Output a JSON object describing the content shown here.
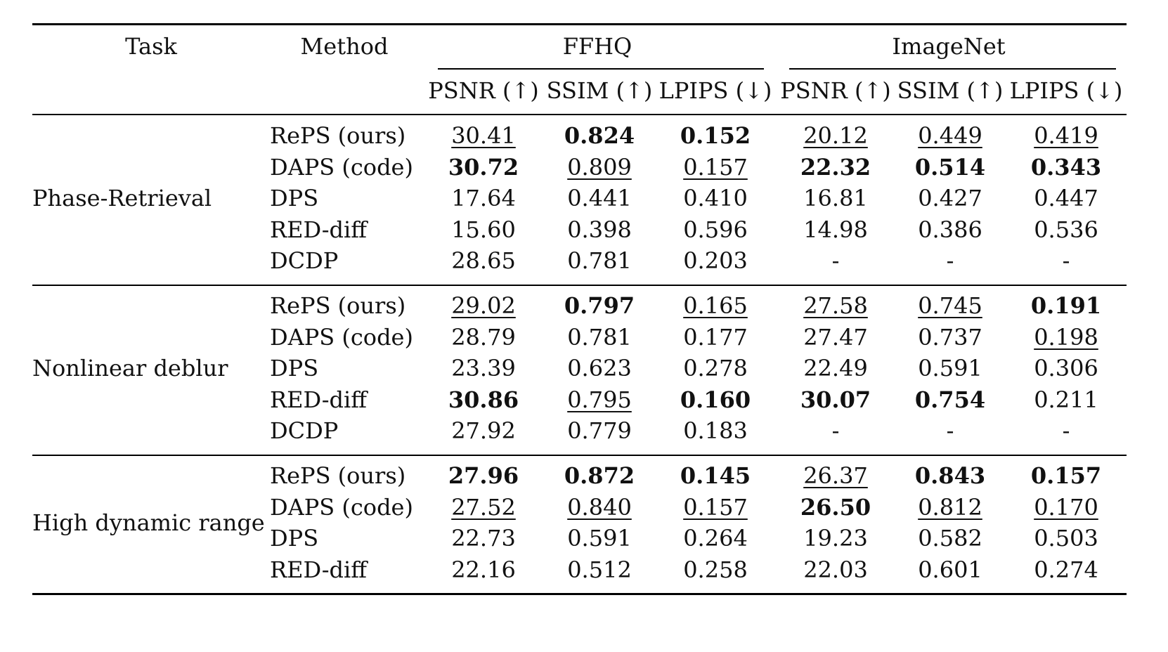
{
  "headers": {
    "task": "Task",
    "method": "Method",
    "groups": [
      "FFHQ",
      "ImageNet"
    ],
    "metrics": [
      "PSNR (↑)",
      "SSIM (↑)",
      "LPIPS (↓)",
      "PSNR (↑)",
      "SSIM (↑)",
      "LPIPS (↓)"
    ]
  },
  "groups": [
    {
      "task": "Phase-Retrieval",
      "rows": [
        {
          "method": "RePS (ours)",
          "cells": [
            {
              "v": "30.41",
              "s": "u"
            },
            {
              "v": "0.824",
              "s": "b"
            },
            {
              "v": "0.152",
              "s": "b"
            },
            {
              "v": "20.12",
              "s": "u"
            },
            {
              "v": "0.449",
              "s": "u"
            },
            {
              "v": "0.419",
              "s": "u"
            }
          ]
        },
        {
          "method": "DAPS (code)",
          "cells": [
            {
              "v": "30.72",
              "s": "b"
            },
            {
              "v": "0.809",
              "s": "u"
            },
            {
              "v": "0.157",
              "s": "u"
            },
            {
              "v": "22.32",
              "s": "b"
            },
            {
              "v": "0.514",
              "s": "b"
            },
            {
              "v": "0.343",
              "s": "b"
            }
          ]
        },
        {
          "method": "DPS",
          "cells": [
            {
              "v": "17.64",
              "s": ""
            },
            {
              "v": "0.441",
              "s": ""
            },
            {
              "v": "0.410",
              "s": ""
            },
            {
              "v": "16.81",
              "s": ""
            },
            {
              "v": "0.427",
              "s": ""
            },
            {
              "v": "0.447",
              "s": ""
            }
          ]
        },
        {
          "method": "RED-diff",
          "cells": [
            {
              "v": "15.60",
              "s": ""
            },
            {
              "v": "0.398",
              "s": ""
            },
            {
              "v": "0.596",
              "s": ""
            },
            {
              "v": "14.98",
              "s": ""
            },
            {
              "v": "0.386",
              "s": ""
            },
            {
              "v": "0.536",
              "s": ""
            }
          ]
        },
        {
          "method": "DCDP",
          "cells": [
            {
              "v": "28.65",
              "s": ""
            },
            {
              "v": "0.781",
              "s": ""
            },
            {
              "v": "0.203",
              "s": ""
            },
            {
              "v": "-",
              "s": ""
            },
            {
              "v": "-",
              "s": ""
            },
            {
              "v": "-",
              "s": ""
            }
          ]
        }
      ]
    },
    {
      "task": "Nonlinear deblur",
      "rows": [
        {
          "method": "RePS (ours)",
          "cells": [
            {
              "v": "29.02",
              "s": "u"
            },
            {
              "v": "0.797",
              "s": "b"
            },
            {
              "v": "0.165",
              "s": "u"
            },
            {
              "v": "27.58",
              "s": "u"
            },
            {
              "v": "0.745",
              "s": "u"
            },
            {
              "v": "0.191",
              "s": "b"
            }
          ]
        },
        {
          "method": "DAPS (code)",
          "cells": [
            {
              "v": "28.79",
              "s": ""
            },
            {
              "v": "0.781",
              "s": ""
            },
            {
              "v": "0.177",
              "s": ""
            },
            {
              "v": "27.47",
              "s": ""
            },
            {
              "v": "0.737",
              "s": ""
            },
            {
              "v": "0.198",
              "s": "u"
            }
          ]
        },
        {
          "method": "DPS",
          "cells": [
            {
              "v": "23.39",
              "s": ""
            },
            {
              "v": "0.623",
              "s": ""
            },
            {
              "v": "0.278",
              "s": ""
            },
            {
              "v": "22.49",
              "s": ""
            },
            {
              "v": "0.591",
              "s": ""
            },
            {
              "v": "0.306",
              "s": ""
            }
          ]
        },
        {
          "method": "RED-diff",
          "cells": [
            {
              "v": "30.86",
              "s": "b"
            },
            {
              "v": "0.795",
              "s": "u"
            },
            {
              "v": "0.160",
              "s": "b"
            },
            {
              "v": "30.07",
              "s": "b"
            },
            {
              "v": "0.754",
              "s": "b"
            },
            {
              "v": "0.211",
              "s": ""
            }
          ]
        },
        {
          "method": "DCDP",
          "cells": [
            {
              "v": "27.92",
              "s": ""
            },
            {
              "v": "0.779",
              "s": ""
            },
            {
              "v": "0.183",
              "s": ""
            },
            {
              "v": "-",
              "s": ""
            },
            {
              "v": "-",
              "s": ""
            },
            {
              "v": "-",
              "s": ""
            }
          ]
        }
      ]
    },
    {
      "task": "High dynamic range",
      "rows": [
        {
          "method": "RePS (ours)",
          "cells": [
            {
              "v": "27.96",
              "s": "b"
            },
            {
              "v": "0.872",
              "s": "b"
            },
            {
              "v": "0.145",
              "s": "b"
            },
            {
              "v": "26.37",
              "s": "u"
            },
            {
              "v": "0.843",
              "s": "b"
            },
            {
              "v": "0.157",
              "s": "b"
            }
          ]
        },
        {
          "method": "DAPS (code)",
          "cells": [
            {
              "v": "27.52",
              "s": "u"
            },
            {
              "v": "0.840",
              "s": "u"
            },
            {
              "v": "0.157",
              "s": "u"
            },
            {
              "v": "26.50",
              "s": "b"
            },
            {
              "v": "0.812",
              "s": "u"
            },
            {
              "v": "0.170",
              "s": "u"
            }
          ]
        },
        {
          "method": "DPS",
          "cells": [
            {
              "v": "22.73",
              "s": ""
            },
            {
              "v": "0.591",
              "s": ""
            },
            {
              "v": "0.264",
              "s": ""
            },
            {
              "v": "19.23",
              "s": ""
            },
            {
              "v": "0.582",
              "s": ""
            },
            {
              "v": "0.503",
              "s": ""
            }
          ]
        },
        {
          "method": "RED-diff",
          "cells": [
            {
              "v": "22.16",
              "s": ""
            },
            {
              "v": "0.512",
              "s": ""
            },
            {
              "v": "0.258",
              "s": ""
            },
            {
              "v": "22.03",
              "s": ""
            },
            {
              "v": "0.601",
              "s": ""
            },
            {
              "v": "0.274",
              "s": ""
            }
          ]
        }
      ]
    }
  ]
}
